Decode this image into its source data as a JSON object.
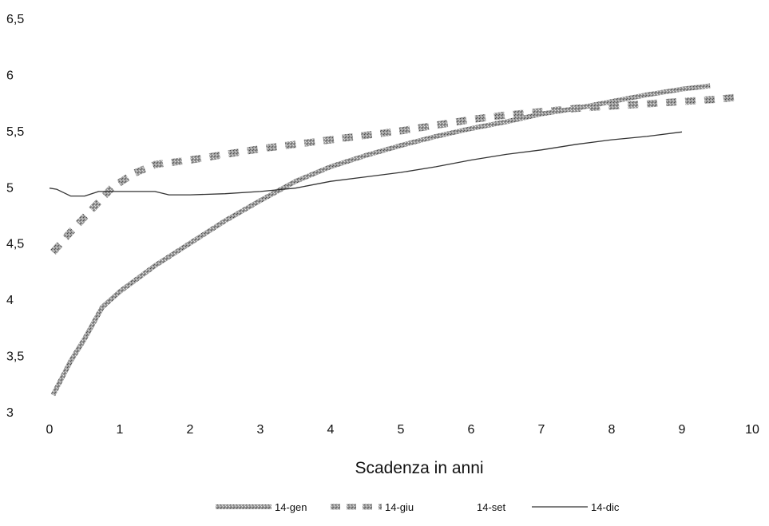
{
  "chart_data": {
    "type": "line",
    "title": "",
    "xlabel": "Scadenza in anni",
    "ylabel": "",
    "xlim": [
      0,
      10
    ],
    "ylim": [
      3,
      6.5
    ],
    "x_ticks": [
      "0",
      "1",
      "2",
      "3",
      "4",
      "5",
      "6",
      "7",
      "8",
      "9",
      "10"
    ],
    "y_ticks": [
      "3",
      "3,5",
      "4",
      "4,5",
      "5",
      "5,5",
      "6",
      "6,5"
    ],
    "grid": false,
    "legend_position": "bottom",
    "series": [
      {
        "name": "14-gen",
        "style": "thick-textured",
        "color": "#8a8a8a",
        "points": [
          [
            0.05,
            3.15
          ],
          [
            0.3,
            3.45
          ],
          [
            0.5,
            3.65
          ],
          [
            0.75,
            3.93
          ],
          [
            1.0,
            4.07
          ],
          [
            1.5,
            4.3
          ],
          [
            2.0,
            4.5
          ],
          [
            2.5,
            4.7
          ],
          [
            3.0,
            4.88
          ],
          [
            3.5,
            5.05
          ],
          [
            4.0,
            5.18
          ],
          [
            4.5,
            5.28
          ],
          [
            5.0,
            5.37
          ],
          [
            5.5,
            5.45
          ],
          [
            6.0,
            5.52
          ],
          [
            6.5,
            5.58
          ],
          [
            7.0,
            5.65
          ],
          [
            7.5,
            5.7
          ],
          [
            8.0,
            5.76
          ],
          [
            8.5,
            5.82
          ],
          [
            9.0,
            5.87
          ],
          [
            9.4,
            5.9
          ]
        ]
      },
      {
        "name": "14-giu",
        "style": "dashed-thick",
        "color": "#8a8a8a",
        "points": [
          [
            0.05,
            4.42
          ],
          [
            0.3,
            4.6
          ],
          [
            0.6,
            4.8
          ],
          [
            0.9,
            5.0
          ],
          [
            1.2,
            5.12
          ],
          [
            1.5,
            5.2
          ],
          [
            2.0,
            5.24
          ],
          [
            2.5,
            5.29
          ],
          [
            3.0,
            5.34
          ],
          [
            3.5,
            5.38
          ],
          [
            4.0,
            5.42
          ],
          [
            4.5,
            5.46
          ],
          [
            5.0,
            5.5
          ],
          [
            5.5,
            5.55
          ],
          [
            6.0,
            5.6
          ],
          [
            6.5,
            5.64
          ],
          [
            7.0,
            5.67
          ],
          [
            7.5,
            5.7
          ],
          [
            8.0,
            5.72
          ],
          [
            8.5,
            5.74
          ],
          [
            9.0,
            5.76
          ],
          [
            9.5,
            5.78
          ],
          [
            9.8,
            5.8
          ]
        ]
      },
      {
        "name": "14-set",
        "style": "none",
        "color": "#ffffff",
        "points": []
      },
      {
        "name": "14-dic",
        "style": "thin",
        "color": "#3a3a3a",
        "points": [
          [
            0.0,
            4.99
          ],
          [
            0.1,
            4.98
          ],
          [
            0.3,
            4.92
          ],
          [
            0.5,
            4.92
          ],
          [
            0.7,
            4.96
          ],
          [
            1.0,
            4.96
          ],
          [
            1.5,
            4.96
          ],
          [
            1.7,
            4.93
          ],
          [
            2.0,
            4.93
          ],
          [
            2.5,
            4.94
          ],
          [
            3.0,
            4.96
          ],
          [
            3.5,
            4.99
          ],
          [
            4.0,
            5.05
          ],
          [
            4.5,
            5.09
          ],
          [
            5.0,
            5.13
          ],
          [
            5.5,
            5.18
          ],
          [
            6.0,
            5.24
          ],
          [
            6.5,
            5.29
          ],
          [
            7.0,
            5.33
          ],
          [
            7.5,
            5.38
          ],
          [
            8.0,
            5.42
          ],
          [
            8.5,
            5.45
          ],
          [
            9.0,
            5.49
          ]
        ]
      }
    ]
  }
}
